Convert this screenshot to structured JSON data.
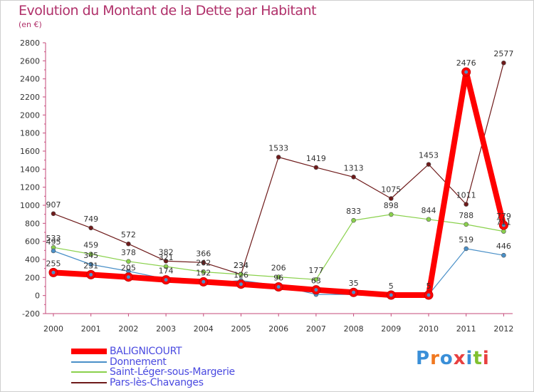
{
  "header": {
    "title": "Evolution du Montant de la Dette par Habitant",
    "unit": "(en €)"
  },
  "logo": {
    "letters": [
      "P",
      "r",
      "o",
      "x",
      "i",
      "t",
      "i"
    ],
    "colors": [
      "#3a8fd8",
      "#f07820",
      "#3a8fd8",
      "#e84040",
      "#3a8fd8",
      "#80c030",
      "#e84040"
    ]
  },
  "chart_data": {
    "type": "line",
    "title": "Evolution du Montant de la Dette par Habitant",
    "ylabel": "(en €)",
    "xlabel": "",
    "ylim": [
      -200,
      2800
    ],
    "yticks": [
      -200,
      0,
      200,
      400,
      600,
      800,
      1000,
      1200,
      1400,
      1600,
      1800,
      2000,
      2200,
      2400,
      2600,
      2800
    ],
    "categories": [
      "2000",
      "2001",
      "2002",
      "2003",
      "2004",
      "2005",
      "2006",
      "2007",
      "2008",
      "2009",
      "2010",
      "2011",
      "2012"
    ],
    "grid": false,
    "legend_position": "bottom-left",
    "series": [
      {
        "name": "BALIGNICOURT",
        "color": "#ff0000",
        "values": [
          255,
          231,
          205,
          174,
          152,
          126,
          96,
          63,
          35,
          5,
          5,
          2476,
          779
        ],
        "labels": [
          "255",
          "231",
          "205",
          "174",
          "152",
          "126",
          "96",
          "63",
          "35",
          "5",
          "5",
          "2476",
          "779"
        ]
      },
      {
        "name": "Donnement",
        "color": "#4a90c8",
        "values": [
          495,
          345,
          270,
          183,
          131,
          167,
          110,
          12,
          12,
          12,
          10,
          519,
          446
        ],
        "labels": [
          "495",
          "345",
          "",
          "",
          "",
          "",
          "",
          "",
          "",
          "",
          "",
          "519",
          "446"
        ]
      },
      {
        "name": "Saint-Léger-sous-Margerie",
        "color": "#8ad14c",
        "values": [
          533,
          459,
          378,
          321,
          262,
          234,
          206,
          177,
          833,
          898,
          844,
          788,
          711
        ],
        "labels": [
          "533",
          "459",
          "378",
          "321",
          "262",
          "234",
          "206",
          "177",
          "833",
          "898",
          "844",
          "788",
          "711"
        ]
      },
      {
        "name": "Pars-lès-Chavanges",
        "color": "#6e1a1a",
        "values": [
          907,
          749,
          572,
          382,
          366,
          234,
          1533,
          1419,
          1313,
          1075,
          1453,
          1011,
          2577
        ],
        "labels": [
          "907",
          "749",
          "572",
          "382",
          "366",
          "234",
          "1533",
          "1419",
          "1313",
          "1075",
          "1453",
          "1011",
          "2577"
        ]
      }
    ]
  }
}
